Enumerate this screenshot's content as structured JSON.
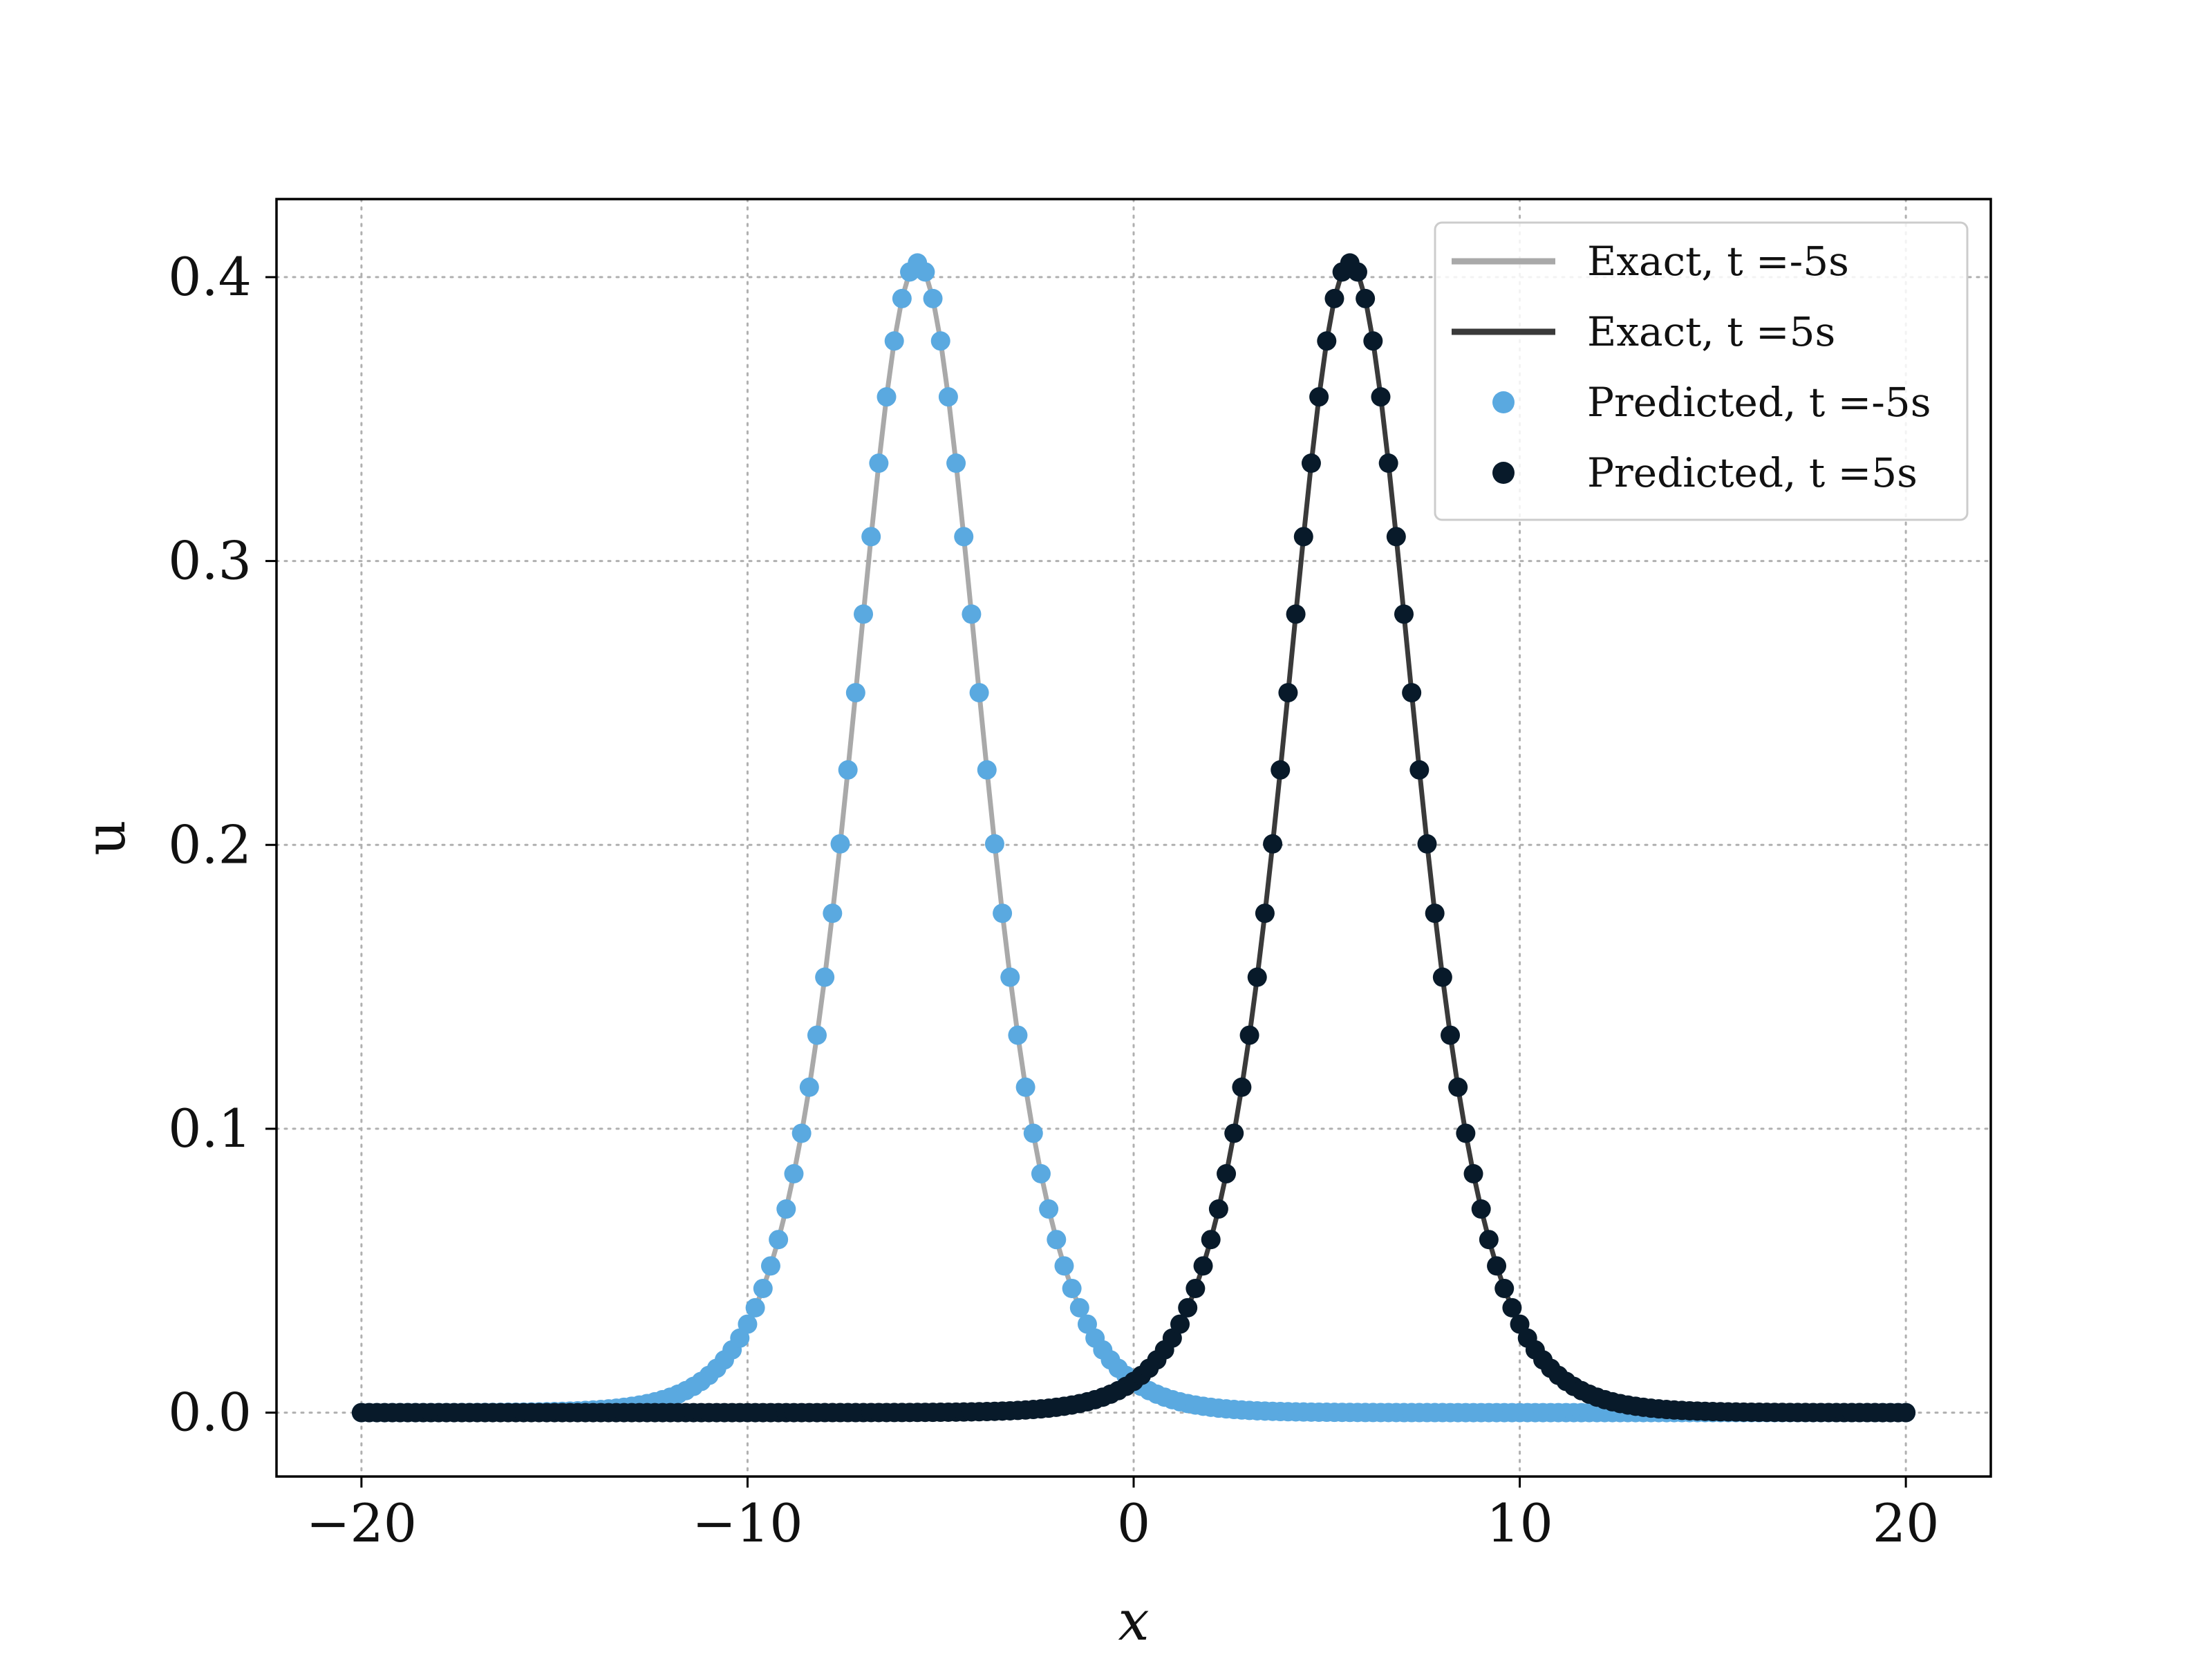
{
  "chart_data": {
    "type": "scatter",
    "title": "",
    "xlabel": "x",
    "ylabel": "u",
    "xlim": [
      -22.2,
      22.2
    ],
    "ylim": [
      -0.0225,
      0.4275
    ],
    "grid": true,
    "grid_style": "dotted",
    "x_ticks": [
      -20,
      -10,
      0,
      10,
      20
    ],
    "x_tick_labels": [
      "−20",
      "−10",
      "0",
      "10",
      "20"
    ],
    "y_ticks": [
      0.0,
      0.1,
      0.2,
      0.3,
      0.4
    ],
    "y_tick_labels": [
      "0.0",
      "0.1",
      "0.2",
      "0.3",
      "0.4"
    ],
    "legend_position": "top-right",
    "x_grid_range": [
      -20,
      20
    ],
    "x_sample_step": 0.2,
    "series": [
      {
        "name": "Exact, t =-5s",
        "kind": "line",
        "color": "#a9a9a9",
        "center": -5.6,
        "amplitude": 0.405,
        "width": 2.25
      },
      {
        "name": "Exact, t =5s",
        "kind": "line",
        "color": "#3a3a3a",
        "center": 5.6,
        "amplitude": 0.405,
        "width": 2.25
      },
      {
        "name": "Predicted, t =-5s",
        "kind": "points",
        "color": "#5aa9e0",
        "center": -5.6,
        "amplitude": 0.405,
        "width": 2.25
      },
      {
        "name": "Predicted, t =5s",
        "kind": "points",
        "color": "#081a2a",
        "center": 5.6,
        "amplitude": 0.405,
        "width": 2.25
      }
    ],
    "curve_form": "u = amplitude * sech^2((x - center) / width)"
  }
}
